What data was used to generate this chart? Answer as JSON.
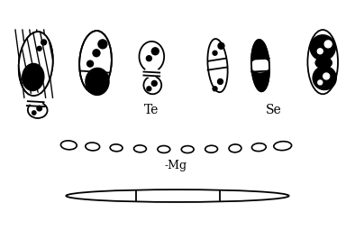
{
  "label_Te": "Te",
  "label_Se": "Se",
  "label_Mg": "-Mg",
  "bg_color": "#ffffff",
  "line_color": "#000000"
}
